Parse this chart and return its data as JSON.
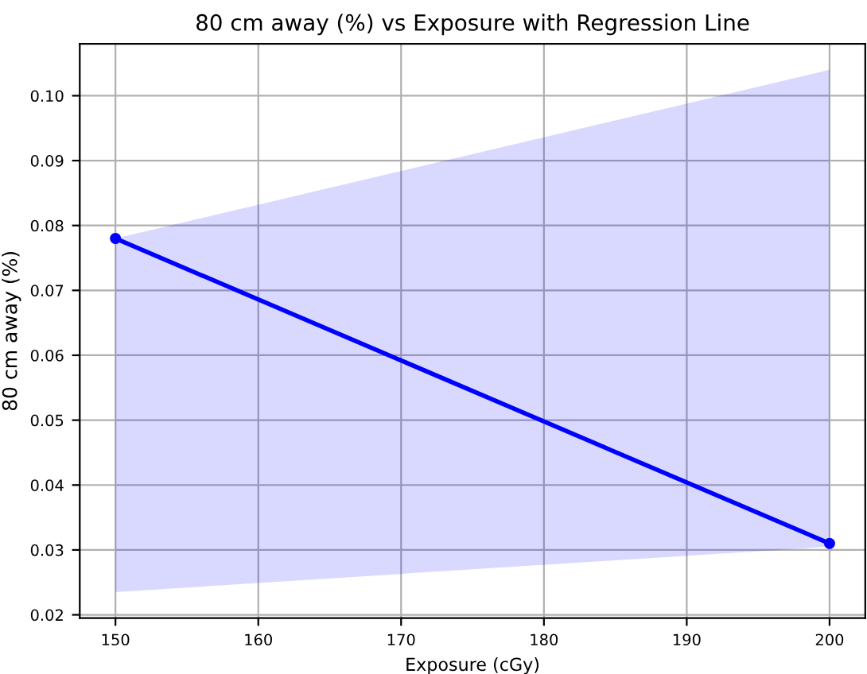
{
  "chart_data": {
    "type": "line",
    "title": "80 cm away (%) vs Exposure with Regression Line",
    "xlabel": "Exposure (cGy)",
    "ylabel": "80 cm away (%)",
    "series": [
      {
        "color": "#0000ff",
        "x": [
          150,
          200
        ],
        "values": [
          0.078,
          0.031
        ],
        "lower": [
          0.0235,
          0.0305
        ],
        "upper": [
          0.078,
          0.104
        ]
      }
    ],
    "xlim": [
      147.5,
      202.5
    ],
    "xticks": [
      150,
      160,
      170,
      180,
      190,
      200
    ],
    "ylim": [
      0.0195,
      0.108
    ],
    "yticks": [
      {
        "value": 0.02,
        "label": "0.02"
      },
      {
        "value": 0.03,
        "label": "0.03"
      },
      {
        "value": 0.04,
        "label": "0.04"
      },
      {
        "value": 0.05,
        "label": "0.05"
      },
      {
        "value": 0.06,
        "label": "0.06"
      },
      {
        "value": 0.07,
        "label": "0.07"
      },
      {
        "value": 0.08,
        "label": "0.08"
      },
      {
        "value": 0.09,
        "label": "0.09"
      },
      {
        "value": 0.1,
        "label": "0.10"
      }
    ],
    "grid": true,
    "line_style": "solid",
    "marker": "circle"
  }
}
